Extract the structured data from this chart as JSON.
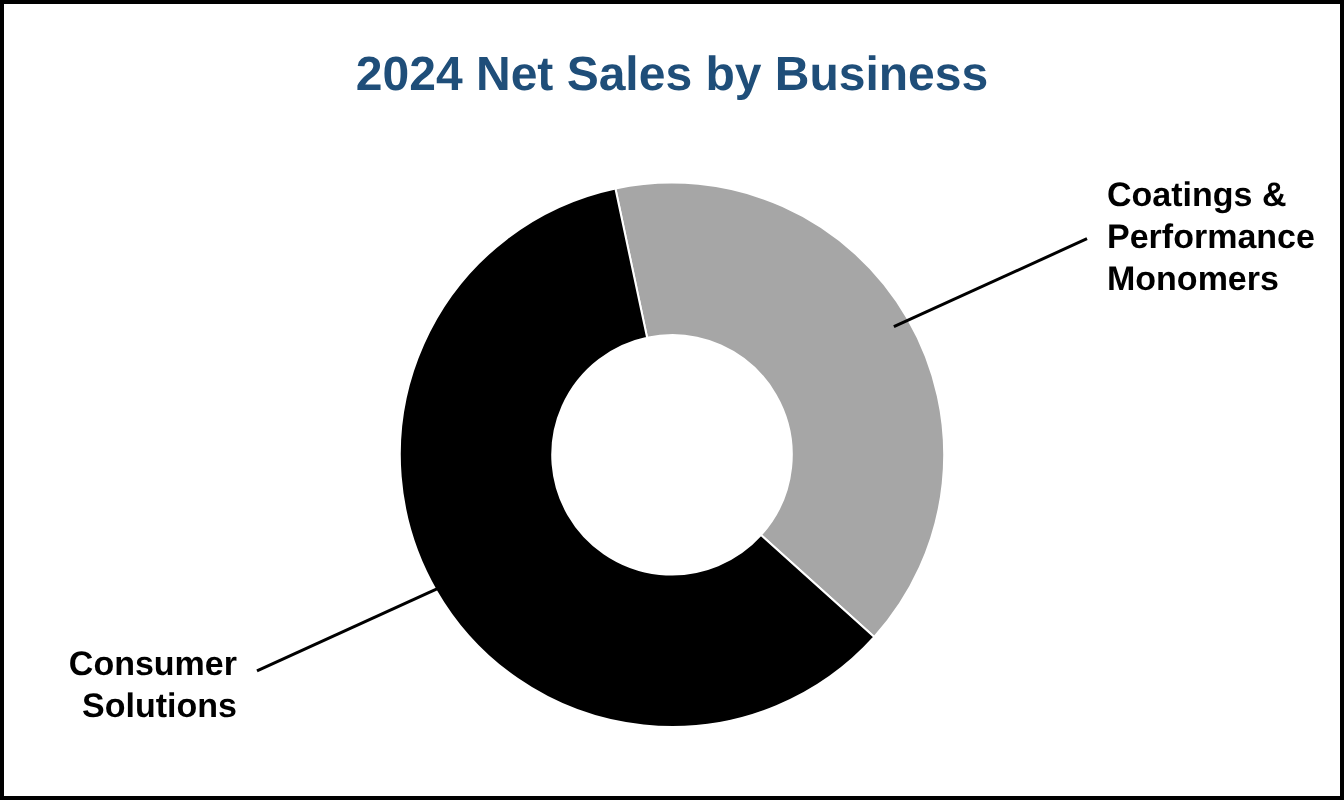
{
  "chart_data": {
    "type": "donut",
    "title": "2024 Net Sales by Business",
    "categories": [
      "Coatings & Performance Monomers",
      "Consumer Solutions"
    ],
    "values": [
      40,
      60
    ],
    "colors": [
      "#a6a6a6",
      "#000000"
    ],
    "legend": false
  }
}
